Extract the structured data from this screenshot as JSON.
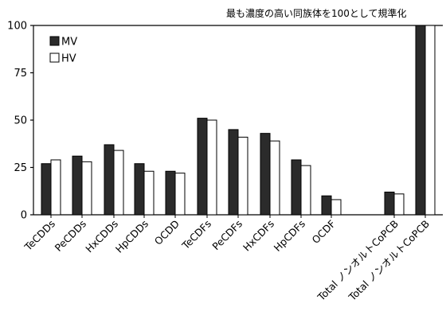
{
  "chart_data": {
    "type": "bar",
    "title": "",
    "note": "最も濃度の高い同族体を100として規準化",
    "xlabel": "",
    "ylabel": "",
    "ylim": [
      0,
      100
    ],
    "yticks": [
      0,
      25,
      50,
      75,
      100
    ],
    "grid": false,
    "legend_position": "top-left",
    "categories": [
      "TeCDDs",
      "PeCDDs",
      "HxCDDs",
      "HpCDDs",
      "OCDD",
      "TeCDFs",
      "PeCDFs",
      "HxCDFs",
      "HpCDFs",
      "OCDF",
      "Total ノンオルトCoPCB",
      "Total ノンオルトCoPCB"
    ],
    "series": [
      {
        "name": "MV",
        "color": "#2b2b2b",
        "values": [
          27,
          31,
          37,
          27,
          23,
          51,
          45,
          43,
          29,
          10,
          12,
          100
        ]
      },
      {
        "name": "HV",
        "color": "#ffffff",
        "values": [
          29,
          28,
          34,
          23,
          22,
          50,
          41,
          39,
          26,
          8,
          11,
          100
        ]
      }
    ]
  }
}
